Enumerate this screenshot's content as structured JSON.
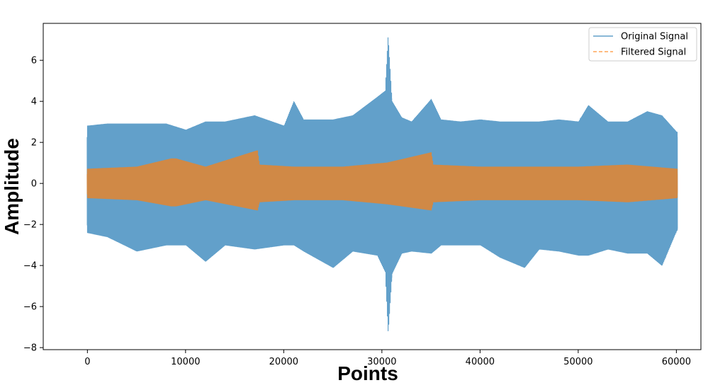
{
  "chart_data": {
    "type": "line",
    "title": "",
    "xlabel": "Points",
    "ylabel": "Amplitude",
    "xlim": [
      -4500,
      62500
    ],
    "ylim": [
      -8.1,
      7.8
    ],
    "x_ticks": [
      0,
      10000,
      20000,
      30000,
      40000,
      50000,
      60000
    ],
    "x_tick_labels": [
      "0",
      "10000",
      "20000",
      "30000",
      "40000",
      "50000",
      "60000"
    ],
    "y_ticks": [
      -8,
      -6,
      -4,
      -2,
      0,
      2,
      4,
      6
    ],
    "y_tick_labels": [
      "−8",
      "−6",
      "−4",
      "−2",
      "0",
      "2",
      "4",
      "6"
    ],
    "grid": false,
    "legend_position": "top-right",
    "series": [
      {
        "name": "Original Signal",
        "color": "#1f77b4",
        "line_style": "solid",
        "opacity": 0.7,
        "x_range": [
          0,
          59999
        ],
        "envelope": {
          "x": [
            0,
            2000,
            5000,
            8000,
            10000,
            12000,
            14000,
            17000,
            20000,
            21000,
            22000,
            25000,
            27000,
            29500,
            30300,
            30600,
            31000,
            32000,
            33000,
            35000,
            36000,
            38000,
            40000,
            42000,
            44500,
            46000,
            48000,
            50000,
            51000,
            53000,
            55000,
            57000,
            58500,
            59999
          ],
          "upper": [
            2.8,
            2.9,
            2.9,
            2.9,
            2.6,
            3.0,
            3.0,
            3.3,
            2.8,
            4.0,
            3.1,
            3.1,
            3.3,
            4.2,
            4.5,
            7.2,
            4.0,
            3.2,
            3.0,
            4.1,
            3.1,
            3.0,
            3.1,
            3.0,
            3.0,
            3.0,
            3.1,
            3.0,
            3.8,
            3.0,
            3.0,
            3.5,
            3.3,
            2.5
          ],
          "lower": [
            -2.4,
            -2.6,
            -3.3,
            -3.0,
            -3.0,
            -3.8,
            -3.0,
            -3.2,
            -3.0,
            -3.0,
            -3.3,
            -4.1,
            -3.3,
            -3.5,
            -4.3,
            -7.3,
            -4.4,
            -3.4,
            -3.3,
            -3.4,
            -3.0,
            -3.0,
            -3.0,
            -3.6,
            -4.1,
            -3.2,
            -3.3,
            -3.5,
            -3.5,
            -3.2,
            -3.4,
            -3.4,
            -4.0,
            -2.3
          ],
          "core": [
            1.9,
            -2.0
          ]
        }
      },
      {
        "name": "Filtered Signal",
        "color": "#ff7f0e",
        "line_style": "dashed",
        "opacity": 0.7,
        "x_range": [
          0,
          59999
        ],
        "envelope": {
          "x": [
            0,
            5000,
            8500,
            9000,
            12000,
            17300,
            17500,
            21000,
            26000,
            30500,
            35000,
            35200,
            40000,
            45000,
            50000,
            55000,
            59999
          ],
          "upper": [
            0.7,
            0.8,
            1.2,
            1.2,
            0.8,
            1.6,
            0.9,
            0.8,
            0.8,
            1.0,
            1.5,
            0.9,
            0.8,
            0.8,
            0.8,
            0.9,
            0.7
          ],
          "lower": [
            -0.7,
            -0.8,
            -1.1,
            -1.1,
            -0.8,
            -1.3,
            -0.9,
            -0.8,
            -0.8,
            -1.0,
            -1.3,
            -0.9,
            -0.8,
            -0.8,
            -0.8,
            -0.9,
            -0.7
          ],
          "core": [
            0.45,
            -0.45
          ]
        }
      }
    ]
  }
}
